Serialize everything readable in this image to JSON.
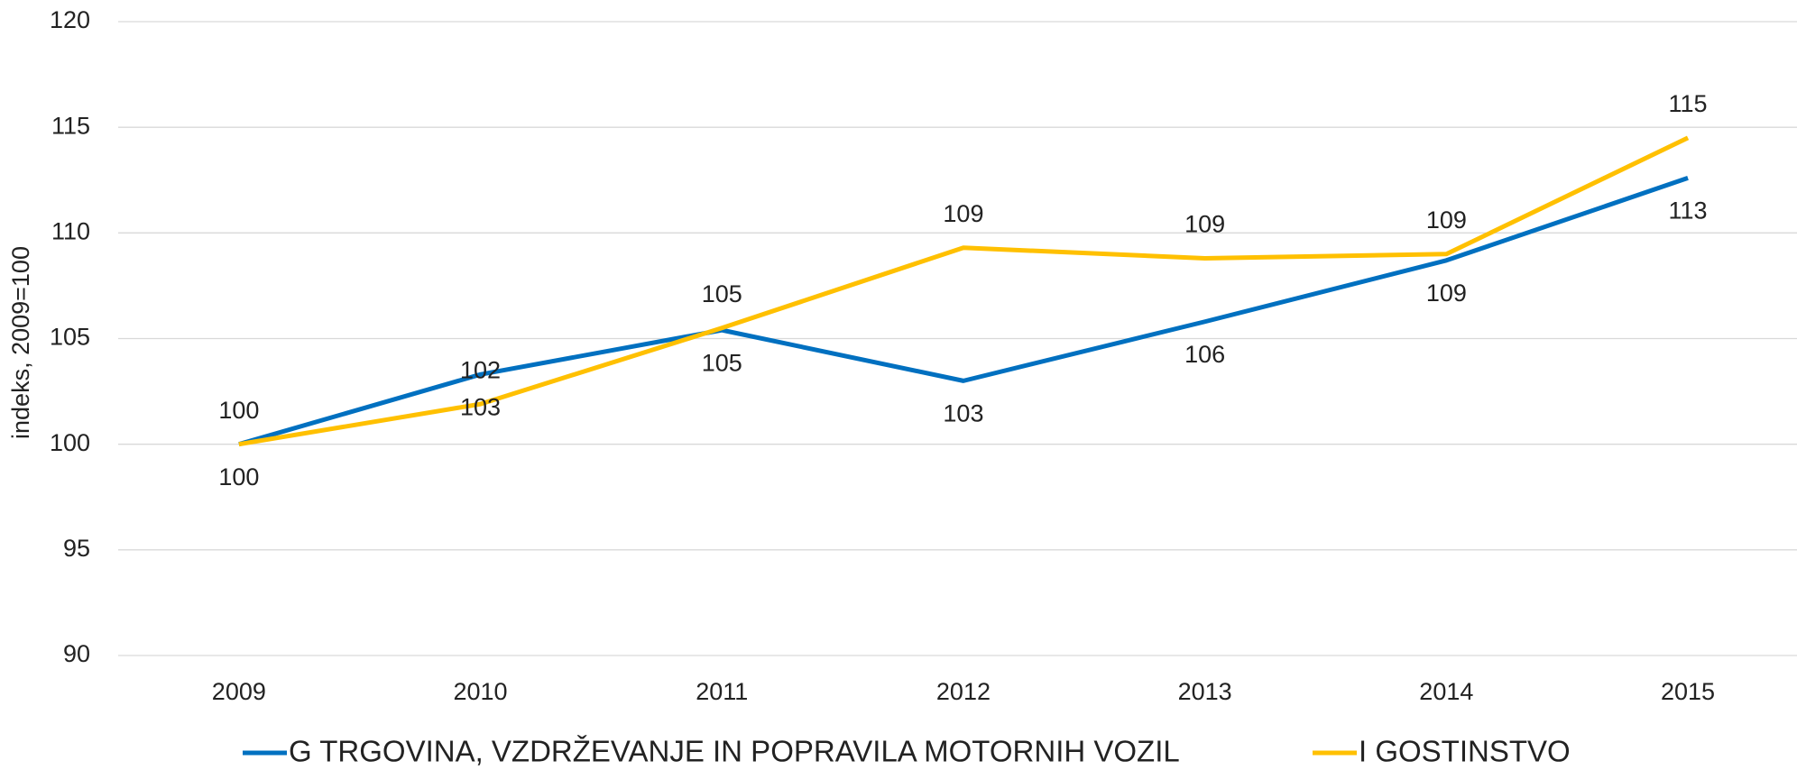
{
  "chart_data": {
    "type": "line",
    "y_label": "indeks, 2009=100",
    "categories": [
      "2009",
      "2010",
      "2011",
      "2012",
      "2013",
      "2014",
      "2015"
    ],
    "series": [
      {
        "name": "G TRGOVINA, VZDRŽEVANJE IN POPRAVILA MOTORNIH VOZIL",
        "color": "#0070c0",
        "values": [
          100,
          103.3,
          105.4,
          103.0,
          105.8,
          108.7,
          112.6
        ],
        "value_labels": [
          "100",
          "103",
          "105",
          "103",
          "106",
          "109",
          "113"
        ]
      },
      {
        "name": "I GOSTINSTVO",
        "color": "#ffc000",
        "values": [
          100,
          101.9,
          105.5,
          109.3,
          108.8,
          109.0,
          114.5
        ],
        "value_labels": [
          "100",
          "102",
          "105",
          "109",
          "109",
          "109",
          "115"
        ]
      }
    ],
    "ylim": [
      90,
      120
    ],
    "yticks": [
      90,
      95,
      100,
      105,
      110,
      115,
      120
    ],
    "grid": true
  }
}
